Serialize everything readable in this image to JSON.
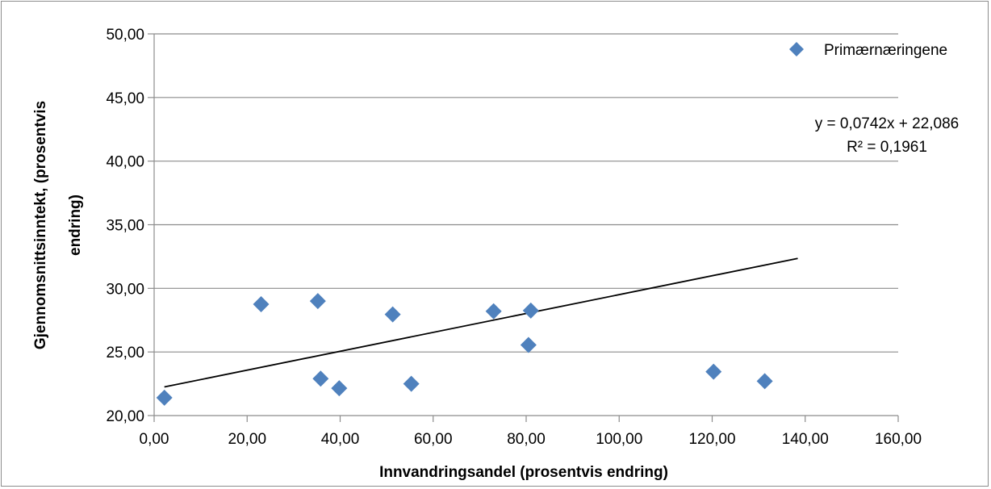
{
  "chart_data": {
    "type": "scatter",
    "title": "",
    "xlabel": "Innvandringsandel (prosentvis endring)",
    "ylabel_lines": [
      "Gjennomsnittsinntekt, (prosentvis",
      "endring)"
    ],
    "xlim": [
      0,
      160
    ],
    "ylim": [
      20,
      50
    ],
    "x_ticks": [
      0,
      20,
      40,
      60,
      80,
      100,
      120,
      140,
      160
    ],
    "y_ticks": [
      20,
      25,
      30,
      35,
      40,
      45,
      50
    ],
    "x_tick_labels": [
      "0,00",
      "20,00",
      "40,00",
      "60,00",
      "80,00",
      "100,00",
      "120,00",
      "140,00",
      "160,00"
    ],
    "y_tick_labels": [
      "20,00",
      "25,00",
      "30,00",
      "35,00",
      "40,00",
      "45,00",
      "50,00"
    ],
    "grid": "horizontal",
    "legend_position": "top-right",
    "marker_color": "#4f81bd",
    "line_color": "#000000",
    "series": [
      {
        "name": "Primærnæringene",
        "points": [
          {
            "x": 2.2,
            "y": 21.4
          },
          {
            "x": 23.0,
            "y": 28.75
          },
          {
            "x": 35.2,
            "y": 29.0
          },
          {
            "x": 35.8,
            "y": 22.9
          },
          {
            "x": 39.8,
            "y": 22.15
          },
          {
            "x": 51.3,
            "y": 27.95
          },
          {
            "x": 55.3,
            "y": 22.5
          },
          {
            "x": 73.0,
            "y": 28.2
          },
          {
            "x": 80.5,
            "y": 25.55
          },
          {
            "x": 81.0,
            "y": 28.25
          },
          {
            "x": 120.3,
            "y": 23.45
          },
          {
            "x": 131.3,
            "y": 22.7
          }
        ]
      }
    ],
    "trendline": {
      "slope": 0.0742,
      "intercept": 22.086,
      "x_start": 2.2,
      "x_end": 138.4,
      "equation": "y = 0,0742x + 22,086",
      "r_squared": "R² = 0,1961"
    }
  }
}
